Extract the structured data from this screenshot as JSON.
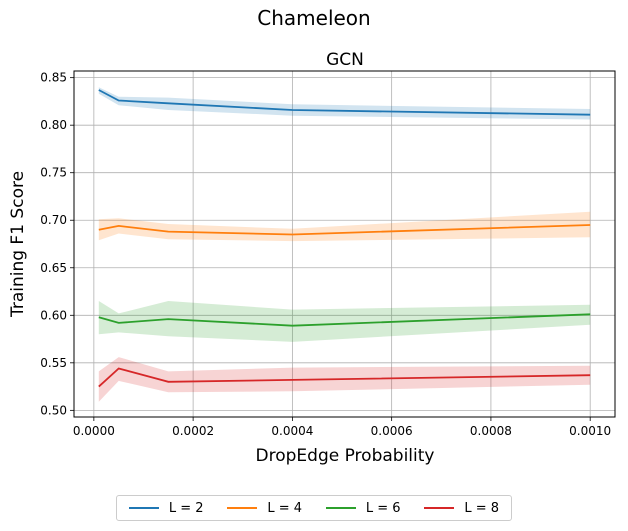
{
  "suptitle": "Chameleon",
  "chart_data": {
    "type": "line",
    "title": "GCN",
    "xlabel": "DropEdge Probability",
    "ylabel": "Training F1 Score",
    "xlim": [
      -4e-05,
      0.00105
    ],
    "ylim": [
      0.493,
      0.857
    ],
    "x_ticks": [
      0.0,
      0.0002,
      0.0004,
      0.0006,
      0.0008,
      0.001
    ],
    "x_tick_labels": [
      "0.0000",
      "0.0002",
      "0.0004",
      "0.0006",
      "0.0008",
      "0.0010"
    ],
    "y_ticks": [
      0.5,
      0.55,
      0.6,
      0.65,
      0.7,
      0.75,
      0.8,
      0.85
    ],
    "y_tick_labels": [
      "0.50",
      "0.55",
      "0.60",
      "0.65",
      "0.70",
      "0.75",
      "0.80",
      "0.85"
    ],
    "grid": true,
    "legend_position": "bottom-center-outside",
    "x": [
      1e-05,
      5e-05,
      0.00015,
      0.0004,
      0.001
    ],
    "series": [
      {
        "name": "L = 2",
        "color": "#1f77b4",
        "values": [
          0.837,
          0.826,
          0.823,
          0.816,
          0.811
        ],
        "lower": [
          0.833,
          0.821,
          0.816,
          0.81,
          0.806
        ],
        "upper": [
          0.84,
          0.83,
          0.829,
          0.822,
          0.817
        ]
      },
      {
        "name": "L = 4",
        "color": "#ff7f0e",
        "values": [
          0.69,
          0.694,
          0.688,
          0.685,
          0.695
        ],
        "lower": [
          0.679,
          0.686,
          0.68,
          0.678,
          0.682
        ],
        "upper": [
          0.701,
          0.702,
          0.696,
          0.691,
          0.709
        ]
      },
      {
        "name": "L = 6",
        "color": "#2ca02c",
        "values": [
          0.598,
          0.592,
          0.596,
          0.589,
          0.601
        ],
        "lower": [
          0.58,
          0.582,
          0.578,
          0.572,
          0.59
        ],
        "upper": [
          0.615,
          0.602,
          0.615,
          0.606,
          0.611
        ]
      },
      {
        "name": "L = 8",
        "color": "#d62728",
        "values": [
          0.525,
          0.544,
          0.53,
          0.532,
          0.537
        ],
        "lower": [
          0.509,
          0.531,
          0.519,
          0.52,
          0.527
        ],
        "upper": [
          0.541,
          0.556,
          0.541,
          0.545,
          0.547
        ]
      }
    ]
  }
}
